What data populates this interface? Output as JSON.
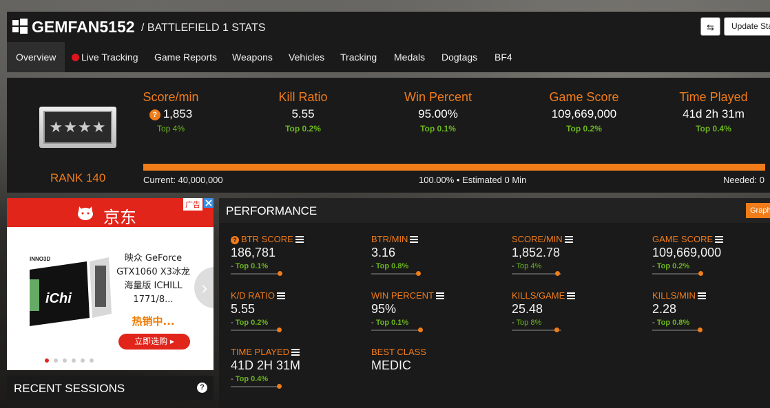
{
  "header": {
    "username": "GEMFAN5152",
    "subtitle": "/ BATTLEFIELD 1 STATS",
    "swap_icon": "⇆",
    "update_label": "Update Stats"
  },
  "nav": {
    "items": [
      {
        "label": "Overview"
      },
      {
        "label": "Live Tracking"
      },
      {
        "label": "Game Reports"
      },
      {
        "label": "Weapons"
      },
      {
        "label": "Vehicles"
      },
      {
        "label": "Tracking"
      },
      {
        "label": "Medals"
      },
      {
        "label": "Dogtags"
      },
      {
        "label": "BF4"
      }
    ],
    "live_color": "#e0141e"
  },
  "summary": {
    "rank_label": "RANK 140",
    "rank_stars": "★★★★",
    "stats": [
      {
        "label": "Score/min",
        "value": "1,853",
        "top": "Top 4%"
      },
      {
        "label": "Kill Ratio",
        "value": "5.55",
        "top": "Top 0.2%"
      },
      {
        "label": "Win Percent",
        "value": "95.00%",
        "top": "Top 0.1%"
      },
      {
        "label": "Game Score",
        "value": "109,669,000",
        "top": "Top 0.2%"
      },
      {
        "label": "Time Played",
        "value": "41d 2h 31m",
        "top": "Top 0.4%"
      }
    ],
    "progress_fraction": 1.0,
    "current": "Current: 40,000,000",
    "percent_text": "100.00% • Estimated 0 Min",
    "needed": "Needed: 0"
  },
  "ad": {
    "tag": "广告",
    "logo": "京东",
    "brand": "INNO3D",
    "gpu_text": "iChi",
    "title": "映众 GeForce GTX1060 X3冰龙海量版 ICHILL 1771/8...",
    "hot": "热销中...",
    "buy": "立即选购 ▸",
    "next": "›"
  },
  "recent": {
    "title": "RECENT SESSIONS",
    "help": "?"
  },
  "performance": {
    "title": "PERFORMANCE",
    "graph_label": "Graphs",
    "items": [
      {
        "label": "BTR SCORE",
        "value": "186,781",
        "top": "Top 0.1%",
        "fraction": 0.98
      },
      {
        "label": "BTR/MIN",
        "value": "3.16",
        "top": "Top 0.8%",
        "fraction": 0.95
      },
      {
        "label": "SCORE/MIN",
        "value": "1,852.78",
        "top": "Top 4%",
        "fraction": 0.92
      },
      {
        "label": "GAME SCORE",
        "value": "109,669,000",
        "top": "Top 0.2%",
        "fraction": 0.97
      },
      {
        "label": "K/D RATIO",
        "value": "5.55",
        "top": "Top 0.2%",
        "fraction": 0.97
      },
      {
        "label": "WIN PERCENT",
        "value": "95%",
        "top": "Top 0.1%",
        "fraction": 0.98
      },
      {
        "label": "KILLS/GAME",
        "value": "25.48",
        "top": "Top 8%",
        "fraction": 0.9
      },
      {
        "label": "KILLS/MIN",
        "value": "2.28",
        "top": "Top 0.8%",
        "fraction": 0.96
      },
      {
        "label": "TIME PLAYED",
        "value": "41D 2H 31M",
        "top": "Top 0.4%",
        "fraction": 0.97
      },
      {
        "label": "BEST CLASS",
        "value": "MEDIC"
      }
    ]
  },
  "colors": {
    "accent": "#f07c1a",
    "top_green": "#6cb51f",
    "panel": "#1a1a1a"
  },
  "icons": [
    "windows-icon",
    "swap-icon",
    "question-icon",
    "list-icon",
    "chevron-right-icon",
    "close-icon"
  ]
}
